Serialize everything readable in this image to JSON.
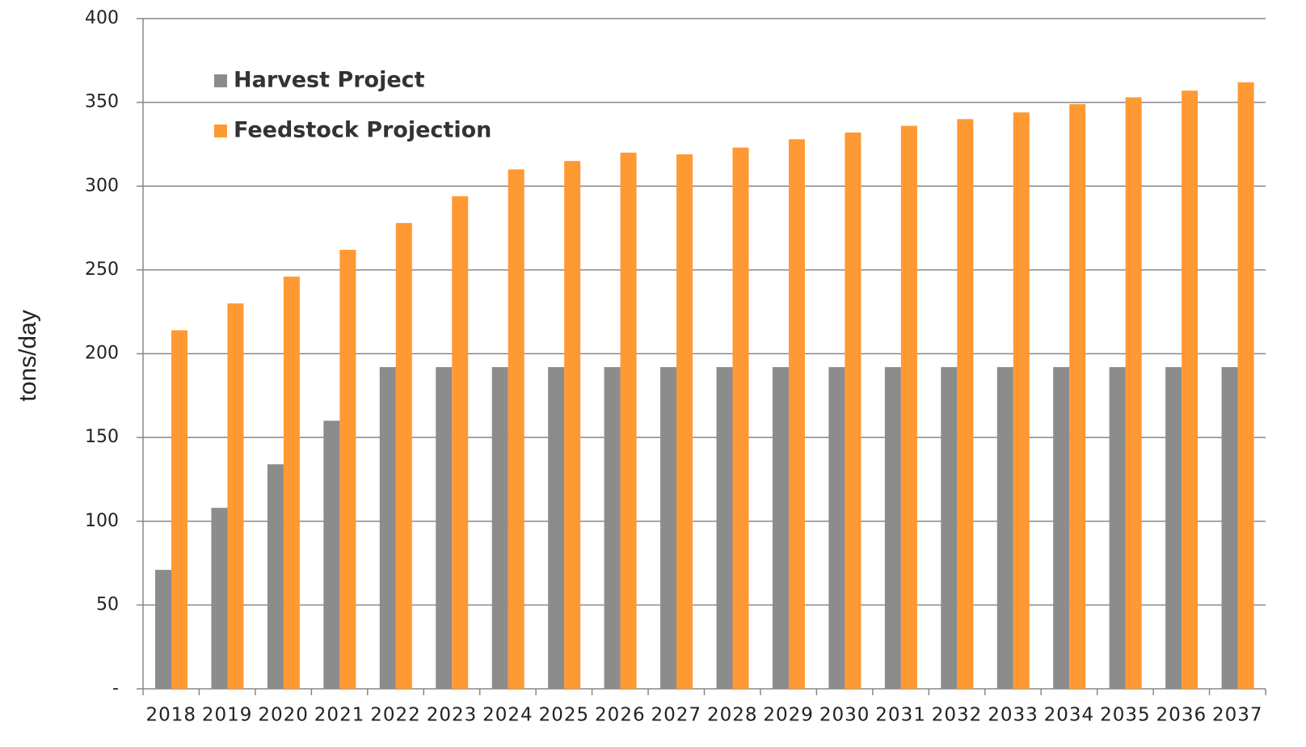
{
  "chart_data": {
    "type": "bar",
    "y_label": "tons/day",
    "categories": [
      "2018",
      "2019",
      "2020",
      "2021",
      "2022",
      "2023",
      "2024",
      "2025",
      "2026",
      "2027",
      "2028",
      "2029",
      "2030",
      "2031",
      "2032",
      "2033",
      "2034",
      "2035",
      "2036",
      "2037"
    ],
    "series": [
      {
        "name": "Harvest Project",
        "color": "#8c8c8c",
        "values": [
          71,
          108,
          134,
          160,
          192,
          192,
          192,
          192,
          192,
          192,
          192,
          192,
          192,
          192,
          192,
          192,
          192,
          192,
          192,
          192
        ]
      },
      {
        "name": "Feedstock Projection",
        "color": "#ff9933",
        "values": [
          214,
          230,
          246,
          262,
          278,
          294,
          310,
          315,
          320,
          319,
          323,
          328,
          332,
          336,
          340,
          344,
          349,
          353,
          357,
          362
        ]
      }
    ],
    "ylim": [
      0,
      400
    ],
    "yticks": [
      {
        "value": 0,
        "label": "-"
      },
      50,
      100,
      150,
      200,
      250,
      300,
      350,
      400
    ],
    "grid": true,
    "legend": "upper left"
  }
}
